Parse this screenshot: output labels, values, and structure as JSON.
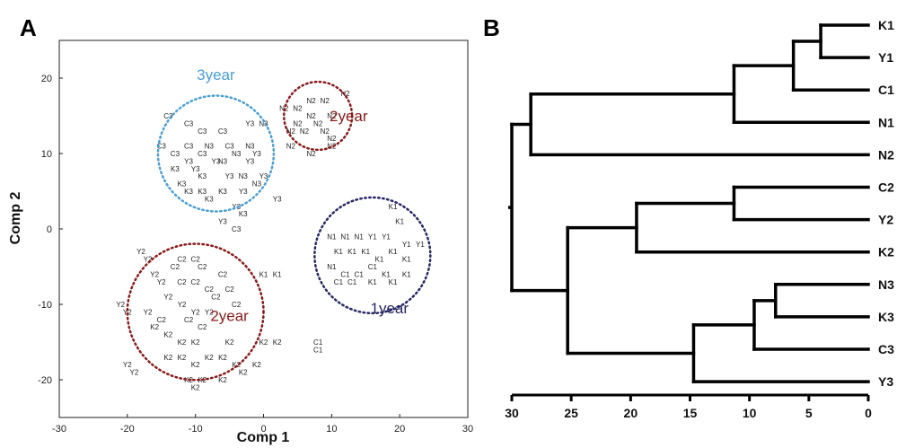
{
  "chart_data": [
    {
      "type": "scatter",
      "panel": "A",
      "xlabel": "Comp 1",
      "ylabel": "Comp 2",
      "xlim": [
        -30,
        30
      ],
      "ylim": [
        -25,
        25
      ],
      "xticks": [
        -30,
        -20,
        -10,
        0,
        10,
        20,
        30
      ],
      "yticks": [
        -20,
        -10,
        0,
        10,
        20
      ],
      "groups": [
        {
          "name": "3year",
          "color": "#4a9fd5",
          "circle": {
            "cx": -7,
            "cy": 10,
            "r": 8.5
          },
          "label_at": [
            -7,
            20.5
          ],
          "points": [
            {
              "label": "C3",
              "x": -14,
              "y": 15
            },
            {
              "label": "C3",
              "x": -11,
              "y": 14
            },
            {
              "label": "C3",
              "x": -9,
              "y": 13
            },
            {
              "label": "C3",
              "x": -15,
              "y": 11
            },
            {
              "label": "C3",
              "x": -13,
              "y": 10
            },
            {
              "label": "C3",
              "x": -11,
              "y": 11
            },
            {
              "label": "C3",
              "x": -9,
              "y": 10
            },
            {
              "label": "C3",
              "x": -6,
              "y": 13
            },
            {
              "label": "C3",
              "x": -5,
              "y": 11
            },
            {
              "label": "K3",
              "x": -13,
              "y": 8
            },
            {
              "label": "K3",
              "x": -12,
              "y": 6
            },
            {
              "label": "K3",
              "x": -11,
              "y": 5
            },
            {
              "label": "K3",
              "x": -9,
              "y": 7
            },
            {
              "label": "K3",
              "x": -9,
              "y": 5
            },
            {
              "label": "K3",
              "x": -8,
              "y": 4
            },
            {
              "label": "K3",
              "x": -6,
              "y": 5
            },
            {
              "label": "K3",
              "x": -3,
              "y": 2
            },
            {
              "label": "N3",
              "x": -8,
              "y": 11
            },
            {
              "label": "N3",
              "x": -6,
              "y": 9
            },
            {
              "label": "N3",
              "x": -4,
              "y": 10
            },
            {
              "label": "N3",
              "x": -3,
              "y": 7
            },
            {
              "label": "N3",
              "x": -1,
              "y": 6
            },
            {
              "label": "N3",
              "x": -2,
              "y": 11
            },
            {
              "label": "N3",
              "x": 0,
              "y": 14
            },
            {
              "label": "Y3",
              "x": -11,
              "y": 9
            },
            {
              "label": "Y3",
              "x": -10,
              "y": 8
            },
            {
              "label": "Y3",
              "x": -7,
              "y": 9
            },
            {
              "label": "Y3",
              "x": -5,
              "y": 7
            },
            {
              "label": "Y3",
              "x": -3,
              "y": 5
            },
            {
              "label": "Y3",
              "x": -2,
              "y": 9
            },
            {
              "label": "Y3",
              "x": -2,
              "y": 14
            },
            {
              "label": "Y3",
              "x": -1,
              "y": 10
            },
            {
              "label": "Y3",
              "x": 0,
              "y": 7
            },
            {
              "label": "Y3",
              "x": 2,
              "y": 4
            },
            {
              "label": "Y3",
              "x": -6,
              "y": 1
            },
            {
              "label": "Y3",
              "x": -4,
              "y": 3
            },
            {
              "label": "C3",
              "x": -4,
              "y": 0
            }
          ]
        },
        {
          "name": "2year",
          "color": "#8b1a1a",
          "circle": {
            "cx": 8,
            "cy": 15,
            "r": 5
          },
          "label_at": [
            12.5,
            15
          ],
          "points": [
            {
              "label": "N2",
              "x": 7,
              "y": 17
            },
            {
              "label": "N2",
              "x": 9,
              "y": 17
            },
            {
              "label": "N2",
              "x": 5,
              "y": 16
            },
            {
              "label": "N2",
              "x": 7,
              "y": 15
            },
            {
              "label": "N2",
              "x": 10,
              "y": 15
            },
            {
              "label": "N2",
              "x": 5,
              "y": 14
            },
            {
              "label": "N2",
              "x": 8,
              "y": 14
            },
            {
              "label": "N2",
              "x": 4,
              "y": 13
            },
            {
              "label": "N2",
              "x": 6,
              "y": 13
            },
            {
              "label": "N2",
              "x": 9,
              "y": 13
            },
            {
              "label": "N2",
              "x": 4,
              "y": 11
            },
            {
              "label": "N2",
              "x": 7,
              "y": 10
            },
            {
              "label": "N2",
              "x": 10,
              "y": 11
            },
            {
              "label": "N2",
              "x": 12,
              "y": 18
            },
            {
              "label": "N2",
              "x": 3,
              "y": 16
            },
            {
              "label": "N2",
              "x": 10,
              "y": 12
            }
          ]
        },
        {
          "name": "2year",
          "color": "#8b1a1a",
          "circle": {
            "cx": -10,
            "cy": -11,
            "r": 10
          },
          "label_at": [
            -5,
            -11.5
          ],
          "points": [
            {
              "label": "Y2",
              "x": -18,
              "y": -3
            },
            {
              "label": "Y2",
              "x": -17,
              "y": -4
            },
            {
              "label": "C2",
              "x": -12,
              "y": -4
            },
            {
              "label": "C2",
              "x": -10,
              "y": -4
            },
            {
              "label": "C2",
              "x": -9,
              "y": -5
            },
            {
              "label": "C2",
              "x": -6,
              "y": -6
            },
            {
              "label": "C2",
              "x": -13,
              "y": -5
            },
            {
              "label": "Y2",
              "x": -16,
              "y": -6
            },
            {
              "label": "Y2",
              "x": -15,
              "y": -7
            },
            {
              "label": "C2",
              "x": -12,
              "y": -7
            },
            {
              "label": "C2",
              "x": -10,
              "y": -7
            },
            {
              "label": "C2",
              "x": -8,
              "y": -8
            },
            {
              "label": "C2",
              "x": -5,
              "y": -8
            },
            {
              "label": "C2",
              "x": -7,
              "y": -9
            },
            {
              "label": "C2",
              "x": -4,
              "y": -10
            },
            {
              "label": "Y2",
              "x": -21,
              "y": -10
            },
            {
              "label": "Y2",
              "x": -20,
              "y": -11
            },
            {
              "label": "Y2",
              "x": -17,
              "y": -11
            },
            {
              "label": "Y2",
              "x": -14,
              "y": -9
            },
            {
              "label": "Y2",
              "x": -12,
              "y": -10
            },
            {
              "label": "Y2",
              "x": -10,
              "y": -11
            },
            {
              "label": "Y2",
              "x": -8,
              "y": -11
            },
            {
              "label": "C2",
              "x": -11,
              "y": -12
            },
            {
              "label": "C2",
              "x": -9,
              "y": -13
            },
            {
              "label": "C2",
              "x": -15,
              "y": -12
            },
            {
              "label": "K2",
              "x": -16,
              "y": -13
            },
            {
              "label": "K2",
              "x": -14,
              "y": -14
            },
            {
              "label": "K2",
              "x": -12,
              "y": -15
            },
            {
              "label": "K2",
              "x": -10,
              "y": -15
            },
            {
              "label": "K2",
              "x": -14,
              "y": -17
            },
            {
              "label": "K2",
              "x": -12,
              "y": -17
            },
            {
              "label": "K2",
              "x": -10,
              "y": -18
            },
            {
              "label": "K2",
              "x": -8,
              "y": -17
            },
            {
              "label": "K2",
              "x": -6,
              "y": -17
            },
            {
              "label": "K2",
              "x": -4,
              "y": -18
            },
            {
              "label": "K2",
              "x": -11,
              "y": -20
            },
            {
              "label": "K2",
              "x": -9,
              "y": -20
            },
            {
              "label": "K2",
              "x": -6,
              "y": -20
            },
            {
              "label": "K2",
              "x": -3,
              "y": -19
            },
            {
              "label": "K2",
              "x": 0,
              "y": -15
            },
            {
              "label": "K2",
              "x": 2,
              "y": -15
            },
            {
              "label": "K2",
              "x": -1,
              "y": -18
            },
            {
              "label": "K2",
              "x": -10,
              "y": -21
            },
            {
              "label": "Y2",
              "x": -20,
              "y": -18
            },
            {
              "label": "Y2",
              "x": -19,
              "y": -19
            },
            {
              "label": "K2",
              "x": -5,
              "y": -15
            }
          ]
        },
        {
          "name": "1year",
          "color": "#262664",
          "circle": {
            "cx": 16,
            "cy": -3.5,
            "r": 8.5
          },
          "label_at": [
            18.5,
            -10.5
          ],
          "points": [
            {
              "label": "K1",
              "x": 19,
              "y": 3
            },
            {
              "label": "K1",
              "x": 20,
              "y": 1
            },
            {
              "label": "N1",
              "x": 10,
              "y": -1
            },
            {
              "label": "N1",
              "x": 12,
              "y": -1
            },
            {
              "label": "N1",
              "x": 14,
              "y": -1
            },
            {
              "label": "Y1",
              "x": 16,
              "y": -1
            },
            {
              "label": "Y1",
              "x": 18,
              "y": -1
            },
            {
              "label": "Y1",
              "x": 21,
              "y": -2
            },
            {
              "label": "Y1",
              "x": 23,
              "y": -2
            },
            {
              "label": "K1",
              "x": 11,
              "y": -3
            },
            {
              "label": "K1",
              "x": 13,
              "y": -3
            },
            {
              "label": "K1",
              "x": 15,
              "y": -3
            },
            {
              "label": "K1",
              "x": 17,
              "y": -4
            },
            {
              "label": "K1",
              "x": 19,
              "y": -3
            },
            {
              "label": "K1",
              "x": 21,
              "y": -4
            },
            {
              "label": "N1",
              "x": 10,
              "y": -5
            },
            {
              "label": "C1",
              "x": 12,
              "y": -6
            },
            {
              "label": "C1",
              "x": 14,
              "y": -6
            },
            {
              "label": "C1",
              "x": 16,
              "y": -5
            },
            {
              "label": "K1",
              "x": 18,
              "y": -6
            },
            {
              "label": "K1",
              "x": 21,
              "y": -6
            },
            {
              "label": "C1",
              "x": 11,
              "y": -7
            },
            {
              "label": "C1",
              "x": 13,
              "y": -7
            },
            {
              "label": "K1",
              "x": 16,
              "y": -7
            },
            {
              "label": "K1",
              "x": 19,
              "y": -7
            },
            {
              "label": "K1",
              "x": 0,
              "y": -6
            },
            {
              "label": "K1",
              "x": 2,
              "y": -6
            },
            {
              "label": "C1",
              "x": 8,
              "y": -15
            },
            {
              "label": "C1",
              "x": 8,
              "y": -16
            }
          ]
        }
      ]
    },
    {
      "type": "dendrogram",
      "panel": "B",
      "xlim": [
        30,
        0
      ],
      "xticks": [
        30,
        25,
        20,
        15,
        10,
        5,
        0
      ],
      "leaves": [
        "K1",
        "Y1",
        "C1",
        "N1",
        "N2",
        "C2",
        "Y2",
        "K2",
        "N3",
        "K3",
        "C3",
        "Y3"
      ],
      "merges": [
        {
          "a": "K1",
          "b": "Y1",
          "height": 4
        },
        {
          "a": "K1,Y1",
          "b": "C1",
          "height": 6.3
        },
        {
          "a": "K1,Y1,C1",
          "b": "N1",
          "height": 11.3
        },
        {
          "a": "K1,Y1,C1,N1",
          "b": "N2",
          "height": 28.4
        },
        {
          "a": "C2",
          "b": "Y2",
          "height": 11.3
        },
        {
          "a": "C2,Y2",
          "b": "K2",
          "height": 19.5
        },
        {
          "a": "N3",
          "b": "K3",
          "height": 7.8
        },
        {
          "a": "N3,K3",
          "b": "C3",
          "height": 9.6
        },
        {
          "a": "N3,K3,C3",
          "b": "Y3",
          "height": 14.7
        },
        {
          "a": "C2,Y2,K2",
          "b": "N3,K3,C3,Y3",
          "height": 25.3
        },
        {
          "a": "K1,Y1,C1,N1,N2",
          "b": "C2,Y2,K2,N3,K3,C3,Y3",
          "height": 30
        }
      ]
    }
  ]
}
